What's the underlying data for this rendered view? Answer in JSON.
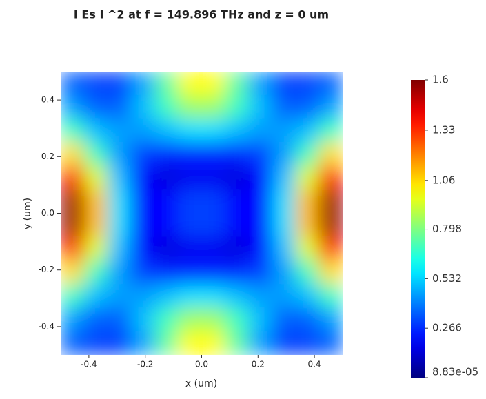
{
  "chart_data": {
    "type": "heatmap",
    "title": "I Es I ^2 at f = 149.896 THz and z = 0 um",
    "x_label": "x (um)",
    "y_label": "y (um)",
    "x": [
      -0.458,
      -0.375,
      -0.292,
      -0.208,
      -0.125,
      -0.042,
      0.042,
      0.125,
      0.208,
      0.292,
      0.375,
      0.458
    ],
    "y": [
      0.458,
      0.375,
      0.292,
      0.208,
      0.125,
      0.042,
      -0.042,
      -0.125,
      -0.208,
      -0.292,
      -0.375,
      -0.458
    ],
    "values": [
      [
        0.35,
        0.3,
        0.3,
        0.45,
        0.75,
        1.0,
        1.0,
        0.75,
        0.45,
        0.3,
        0.3,
        0.35
      ],
      [
        0.45,
        0.35,
        0.35,
        0.5,
        0.7,
        0.85,
        0.85,
        0.7,
        0.5,
        0.35,
        0.35,
        0.45
      ],
      [
        0.7,
        0.5,
        0.45,
        0.45,
        0.5,
        0.55,
        0.55,
        0.5,
        0.45,
        0.45,
        0.5,
        0.7
      ],
      [
        1.05,
        0.7,
        0.45,
        0.3,
        0.25,
        0.25,
        0.25,
        0.25,
        0.3,
        0.45,
        0.7,
        1.05
      ],
      [
        1.4,
        0.95,
        0.5,
        0.2,
        0.15,
        0.18,
        0.18,
        0.15,
        0.2,
        0.5,
        0.95,
        1.4
      ],
      [
        1.55,
        1.1,
        0.55,
        0.2,
        0.2,
        0.3,
        0.3,
        0.2,
        0.2,
        0.55,
        1.1,
        1.55
      ],
      [
        1.55,
        1.1,
        0.55,
        0.2,
        0.2,
        0.3,
        0.3,
        0.2,
        0.2,
        0.55,
        1.1,
        1.55
      ],
      [
        1.4,
        0.95,
        0.5,
        0.2,
        0.15,
        0.18,
        0.18,
        0.15,
        0.2,
        0.5,
        0.95,
        1.4
      ],
      [
        1.05,
        0.7,
        0.45,
        0.3,
        0.25,
        0.25,
        0.25,
        0.25,
        0.3,
        0.45,
        0.7,
        1.05
      ],
      [
        0.7,
        0.5,
        0.45,
        0.45,
        0.5,
        0.55,
        0.55,
        0.5,
        0.45,
        0.45,
        0.5,
        0.7
      ],
      [
        0.45,
        0.35,
        0.35,
        0.5,
        0.7,
        0.85,
        0.85,
        0.7,
        0.5,
        0.35,
        0.35,
        0.45
      ],
      [
        0.35,
        0.3,
        0.3,
        0.45,
        0.75,
        1.0,
        1.0,
        0.75,
        0.45,
        0.3,
        0.3,
        0.35
      ]
    ],
    "xlim": [
      -0.5,
      0.5
    ],
    "ylim": [
      -0.5,
      0.5
    ],
    "xticks": [
      -0.4,
      -0.2,
      {
        "value": 0,
        "label": "0.0"
      },
      0.2,
      0.4
    ],
    "yticks": [
      0.4,
      0.2,
      {
        "value": 0,
        "label": "0.0"
      },
      -0.2,
      -0.4
    ],
    "colormap": "jet",
    "zlim": [
      8.83e-05,
      1.6
    ],
    "zticks": [
      1.6,
      1.33,
      1.06,
      0.798,
      0.532,
      0.266,
      {
        "value": 8.83e-05,
        "label": "8.83e-05"
      }
    ]
  }
}
